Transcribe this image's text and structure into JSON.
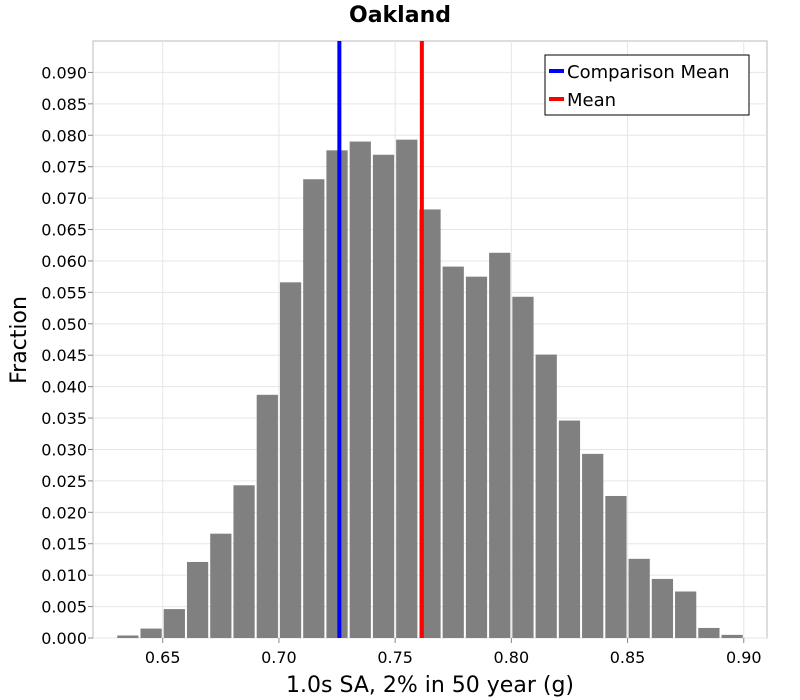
{
  "chart_data": {
    "type": "bar",
    "title": "Oakland",
    "xlabel": "1.0s SA, 2% in 50 year (g)",
    "ylabel": "Fraction",
    "xlim": [
      0.62,
      0.91
    ],
    "ylim": [
      0.0,
      0.095
    ],
    "grid": true,
    "legend_position": "top-right",
    "bin_width": 0.01,
    "x_ticks": [
      "0.65",
      "0.70",
      "0.75",
      "0.80",
      "0.85",
      "0.90"
    ],
    "y_ticks": [
      "0.000",
      "0.005",
      "0.010",
      "0.015",
      "0.020",
      "0.025",
      "0.030",
      "0.035",
      "0.040",
      "0.045",
      "0.050",
      "0.055",
      "0.060",
      "0.065",
      "0.070",
      "0.075",
      "0.080",
      "0.085",
      "0.090"
    ],
    "bin_centers": [
      0.635,
      0.645,
      0.655,
      0.665,
      0.675,
      0.685,
      0.695,
      0.705,
      0.715,
      0.725,
      0.735,
      0.745,
      0.755,
      0.765,
      0.775,
      0.785,
      0.795,
      0.805,
      0.815,
      0.825,
      0.835,
      0.845,
      0.855,
      0.865,
      0.875,
      0.885,
      0.895
    ],
    "values": [
      0.0004,
      0.0015,
      0.0046,
      0.0121,
      0.0166,
      0.0243,
      0.0387,
      0.0566,
      0.073,
      0.0776,
      0.079,
      0.0769,
      0.0793,
      0.0682,
      0.0591,
      0.0575,
      0.0613,
      0.0543,
      0.0451,
      0.0346,
      0.0293,
      0.0226,
      0.0126,
      0.0094,
      0.0074,
      0.0016,
      0.0005
    ],
    "bar_color": "#808080",
    "lines": [
      {
        "name": "Comparison Mean",
        "x": 0.726,
        "color": "#0000ff"
      },
      {
        "name": "Mean",
        "x": 0.7615,
        "color": "#ff0000"
      }
    ]
  }
}
